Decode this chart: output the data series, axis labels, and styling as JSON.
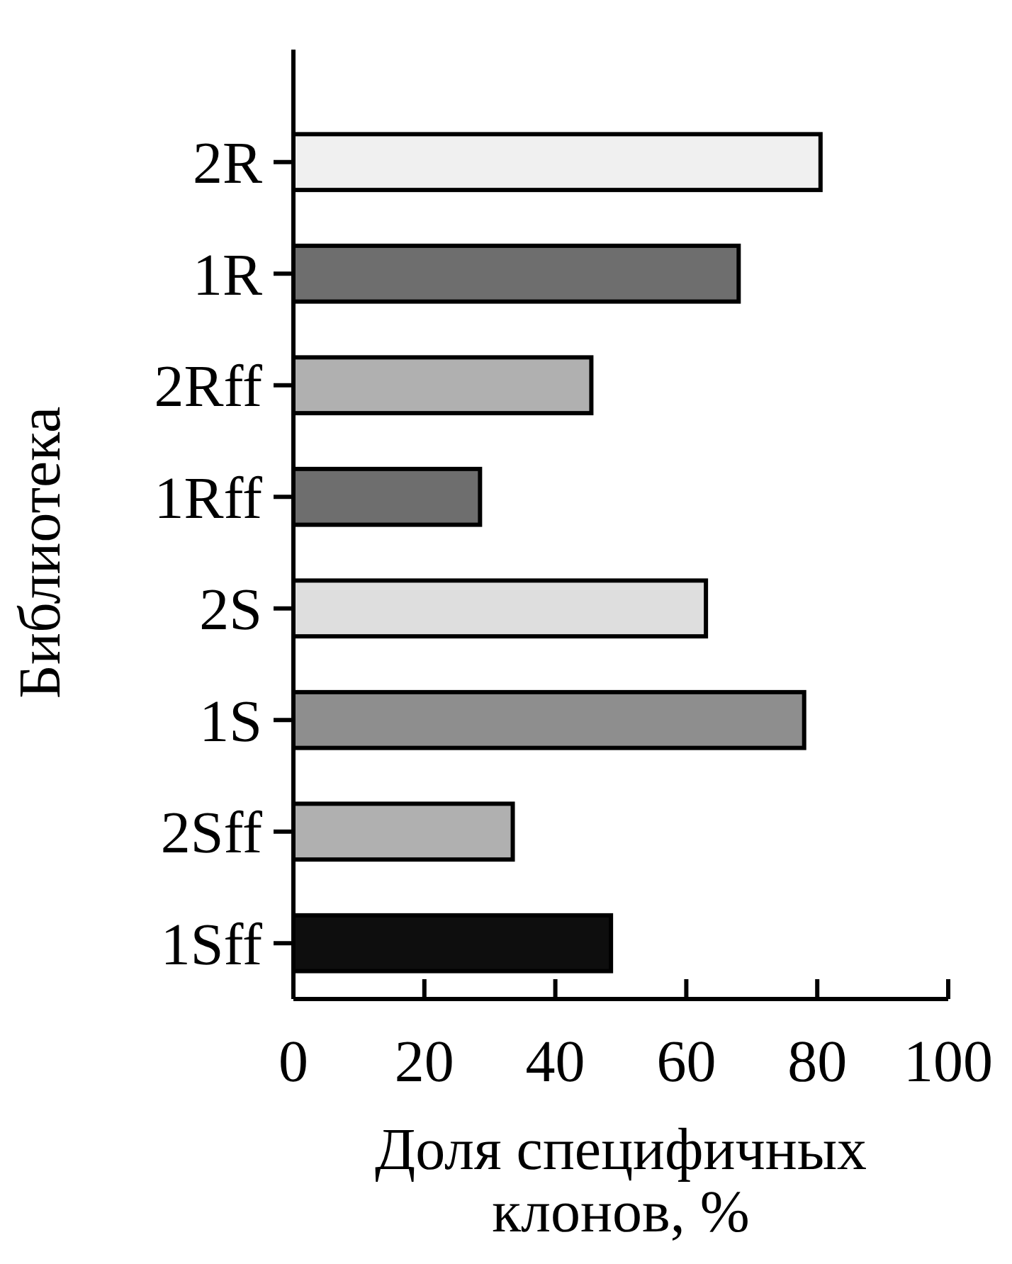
{
  "chart_data": {
    "type": "bar",
    "orientation": "horizontal",
    "xlabel": "Доля специфичных клонов, %",
    "ylabel": "Библиотека",
    "categories": [
      "2R",
      "1R",
      "2Rff",
      "1Rff",
      "2S",
      "1S",
      "2Sff",
      "1Sff"
    ],
    "values": [
      80.5,
      68,
      45.5,
      28.5,
      63,
      78,
      33.5,
      48.5
    ],
    "colors": [
      "#f0f0f0",
      "#6e6e6e",
      "#b0b0b0",
      "#6e6e6e",
      "#dedede",
      "#8e8e8e",
      "#b0b0b0",
      "#0e0e0e"
    ],
    "xlim": [
      0,
      100
    ],
    "xticks": [
      0,
      20,
      40,
      60,
      80,
      100
    ],
    "grid": false
  }
}
